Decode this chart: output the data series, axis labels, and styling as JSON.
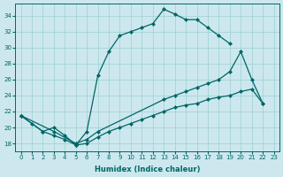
{
  "xlabel": "Humidex (Indice chaleur)",
  "bg_color": "#cce8ee",
  "grid_color": "#9ecfcf",
  "line_color": "#006666",
  "xlim": [
    -0.5,
    23.5
  ],
  "ylim": [
    17.0,
    35.5
  ],
  "xticks": [
    0,
    1,
    2,
    3,
    4,
    5,
    6,
    7,
    8,
    9,
    10,
    11,
    12,
    13,
    14,
    15,
    16,
    17,
    18,
    19,
    20,
    21,
    22,
    23
  ],
  "yticks": [
    18,
    20,
    22,
    24,
    26,
    28,
    30,
    32,
    34
  ],
  "series_upper": [
    [
      0,
      21.5
    ],
    [
      1,
      20.5
    ],
    [
      2,
      19.5
    ],
    [
      3,
      20.0
    ],
    [
      4,
      19.0
    ],
    [
      5,
      17.8
    ],
    [
      6,
      19.5
    ],
    [
      7,
      26.5
    ],
    [
      8,
      29.5
    ],
    [
      9,
      31.5
    ],
    [
      10,
      32.0
    ],
    [
      11,
      32.5
    ],
    [
      12,
      33.0
    ],
    [
      13,
      34.8
    ],
    [
      14,
      34.2
    ],
    [
      15,
      33.5
    ],
    [
      16,
      33.5
    ],
    [
      17,
      32.5
    ],
    [
      18,
      31.5
    ],
    [
      19,
      30.5
    ]
  ],
  "series_mid": [
    [
      0,
      21.5
    ],
    [
      3,
      19.5
    ],
    [
      5,
      18.0
    ],
    [
      6,
      18.5
    ],
    [
      7,
      19.5
    ],
    [
      13,
      23.5
    ],
    [
      14,
      24.0
    ],
    [
      15,
      24.5
    ],
    [
      16,
      25.0
    ],
    [
      17,
      25.5
    ],
    [
      18,
      26.0
    ],
    [
      19,
      27.0
    ],
    [
      20,
      29.5
    ],
    [
      21,
      26.0
    ],
    [
      22,
      23.0
    ]
  ],
  "series_lower": [
    [
      0,
      21.5
    ],
    [
      2,
      19.5
    ],
    [
      3,
      19.0
    ],
    [
      4,
      18.5
    ],
    [
      5,
      17.8
    ],
    [
      6,
      18.0
    ],
    [
      7,
      18.8
    ],
    [
      8,
      19.5
    ],
    [
      9,
      20.0
    ],
    [
      10,
      20.5
    ],
    [
      11,
      21.0
    ],
    [
      12,
      21.5
    ],
    [
      13,
      22.0
    ],
    [
      14,
      22.5
    ],
    [
      15,
      22.8
    ],
    [
      16,
      23.0
    ],
    [
      17,
      23.5
    ],
    [
      18,
      23.8
    ],
    [
      19,
      24.0
    ],
    [
      20,
      24.5
    ],
    [
      21,
      24.8
    ],
    [
      22,
      23.0
    ]
  ],
  "line_width": 0.9,
  "marker_size": 2.5
}
